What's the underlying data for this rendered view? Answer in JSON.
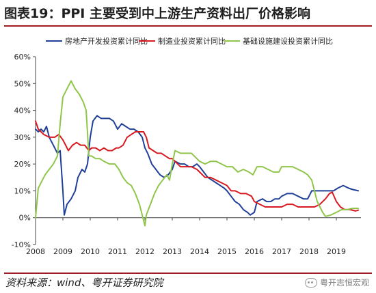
{
  "figure": {
    "title": "图表19：PPI 主要受到中上游生产资料出厂价格影响",
    "source": "资料来源：wind、粤开证券研究院",
    "watermark": "粤开志恒宏观",
    "watermark_icon": "wechat-icon"
  },
  "chart_data": {
    "type": "line",
    "title": "",
    "xlabel": "",
    "ylabel": "",
    "xlim": [
      2008.0,
      2019.9
    ],
    "ylim": [
      -10,
      60
    ],
    "yticks": [
      -10,
      0,
      10,
      20,
      30,
      40,
      50,
      60
    ],
    "ytick_labels": [
      "-10%",
      "0%",
      "10%",
      "20%",
      "30%",
      "40%",
      "50%",
      "60%"
    ],
    "xticks": [
      2008,
      2009,
      2010,
      2011,
      2012,
      2013,
      2014,
      2015,
      2016,
      2017,
      2018,
      2019
    ],
    "xtick_labels": [
      "2008",
      "2009",
      "2010",
      "2011",
      "2012",
      "2013",
      "2014",
      "2015",
      "2016",
      "2017",
      "2018",
      "2019"
    ],
    "grid": false,
    "legend_position": "top",
    "series": [
      {
        "name": "房地产开发投资累计同比",
        "color": "#1f3f99",
        "points": [
          [
            2008.0,
            33
          ],
          [
            2008.1,
            32
          ],
          [
            2008.2,
            33
          ],
          [
            2008.3,
            32
          ],
          [
            2008.4,
            34
          ],
          [
            2008.5,
            30
          ],
          [
            2008.65,
            27
          ],
          [
            2008.8,
            24
          ],
          [
            2008.9,
            25
          ],
          [
            2009.0,
            10
          ],
          [
            2009.05,
            1
          ],
          [
            2009.15,
            5
          ],
          [
            2009.3,
            7
          ],
          [
            2009.45,
            10
          ],
          [
            2009.55,
            15
          ],
          [
            2009.7,
            18
          ],
          [
            2009.8,
            17
          ],
          [
            2009.9,
            20
          ],
          [
            2010.0,
            30
          ],
          [
            2010.1,
            36
          ],
          [
            2010.25,
            38
          ],
          [
            2010.4,
            37
          ],
          [
            2010.55,
            37
          ],
          [
            2010.7,
            37
          ],
          [
            2010.85,
            36
          ],
          [
            2011.0,
            33
          ],
          [
            2011.15,
            35
          ],
          [
            2011.3,
            34
          ],
          [
            2011.45,
            33
          ],
          [
            2011.6,
            33
          ],
          [
            2011.75,
            32
          ],
          [
            2011.9,
            30
          ],
          [
            2012.0,
            26
          ],
          [
            2012.1,
            24
          ],
          [
            2012.25,
            20
          ],
          [
            2012.4,
            18
          ],
          [
            2012.55,
            16
          ],
          [
            2012.7,
            15
          ],
          [
            2012.85,
            16
          ],
          [
            2013.0,
            18
          ],
          [
            2013.1,
            21
          ],
          [
            2013.3,
            20
          ],
          [
            2013.45,
            20
          ],
          [
            2013.6,
            19
          ],
          [
            2013.75,
            19
          ],
          [
            2013.9,
            20
          ],
          [
            2014.0,
            19
          ],
          [
            2014.15,
            17
          ],
          [
            2014.3,
            15
          ],
          [
            2014.45,
            14
          ],
          [
            2014.6,
            13
          ],
          [
            2014.75,
            12
          ],
          [
            2014.9,
            11
          ],
          [
            2015.0,
            10
          ],
          [
            2015.15,
            8
          ],
          [
            2015.3,
            6
          ],
          [
            2015.45,
            5
          ],
          [
            2015.6,
            3
          ],
          [
            2015.75,
            2
          ],
          [
            2015.85,
            1
          ],
          [
            2016.0,
            2
          ],
          [
            2016.1,
            6
          ],
          [
            2016.3,
            7
          ],
          [
            2016.45,
            6
          ],
          [
            2016.6,
            6
          ],
          [
            2016.75,
            7
          ],
          [
            2016.9,
            7
          ],
          [
            2017.0,
            8
          ],
          [
            2017.2,
            9
          ],
          [
            2017.4,
            9
          ],
          [
            2017.6,
            8
          ],
          [
            2017.8,
            7
          ],
          [
            2017.95,
            7
          ],
          [
            2018.1,
            10
          ],
          [
            2018.3,
            10
          ],
          [
            2018.5,
            10
          ],
          [
            2018.7,
            10
          ],
          [
            2018.9,
            10
          ],
          [
            2019.05,
            11
          ],
          [
            2019.25,
            12
          ],
          [
            2019.45,
            11
          ],
          [
            2019.6,
            10.5
          ],
          [
            2019.8,
            10
          ]
        ]
      },
      {
        "name": "制造业投资累计同比",
        "color": "#d7191f",
        "points": [
          [
            2008.0,
            36
          ],
          [
            2008.1,
            33
          ],
          [
            2008.3,
            31
          ],
          [
            2008.5,
            30
          ],
          [
            2008.7,
            30
          ],
          [
            2008.85,
            31
          ],
          [
            2009.0,
            29
          ],
          [
            2009.1,
            27
          ],
          [
            2009.2,
            25
          ],
          [
            2009.35,
            27
          ],
          [
            2009.5,
            28
          ],
          [
            2009.65,
            27
          ],
          [
            2009.8,
            27
          ],
          [
            2009.95,
            25
          ],
          [
            2010.05,
            26
          ],
          [
            2010.2,
            26
          ],
          [
            2010.35,
            25
          ],
          [
            2010.5,
            26
          ],
          [
            2010.65,
            25
          ],
          [
            2010.8,
            25
          ],
          [
            2010.95,
            26
          ],
          [
            2011.05,
            26
          ],
          [
            2011.2,
            27
          ],
          [
            2011.35,
            30
          ],
          [
            2011.5,
            31
          ],
          [
            2011.65,
            32
          ],
          [
            2011.8,
            32
          ],
          [
            2011.95,
            32
          ],
          [
            2012.05,
            30
          ],
          [
            2012.15,
            26
          ],
          [
            2012.3,
            25
          ],
          [
            2012.45,
            24
          ],
          [
            2012.6,
            24
          ],
          [
            2012.75,
            23
          ],
          [
            2012.9,
            22
          ],
          [
            2013.0,
            22
          ],
          [
            2013.1,
            21
          ],
          [
            2013.3,
            19
          ],
          [
            2013.5,
            19
          ],
          [
            2013.7,
            19
          ],
          [
            2013.9,
            18
          ],
          [
            2014.0,
            17
          ],
          [
            2014.2,
            15
          ],
          [
            2014.4,
            15
          ],
          [
            2014.6,
            14
          ],
          [
            2014.8,
            13
          ],
          [
            2015.0,
            12
          ],
          [
            2015.15,
            10
          ],
          [
            2015.3,
            10
          ],
          [
            2015.5,
            9
          ],
          [
            2015.7,
            9
          ],
          [
            2015.9,
            8
          ],
          [
            2016.0,
            6
          ],
          [
            2016.2,
            5
          ],
          [
            2016.4,
            4
          ],
          [
            2016.6,
            4
          ],
          [
            2016.8,
            4
          ],
          [
            2017.0,
            4
          ],
          [
            2017.2,
            5
          ],
          [
            2017.4,
            5
          ],
          [
            2017.6,
            4
          ],
          [
            2017.8,
            4
          ],
          [
            2018.0,
            4
          ],
          [
            2018.2,
            4
          ],
          [
            2018.4,
            5
          ],
          [
            2018.6,
            7
          ],
          [
            2018.75,
            9
          ],
          [
            2018.85,
            9.5
          ],
          [
            2019.0,
            6
          ],
          [
            2019.15,
            4
          ],
          [
            2019.3,
            3
          ],
          [
            2019.5,
            3
          ],
          [
            2019.7,
            2.5
          ],
          [
            2019.8,
            2.8
          ]
        ]
      },
      {
        "name": "基础设施建设投资累计同比",
        "color": "#8fc64a",
        "points": [
          [
            2008.0,
            0
          ],
          [
            2008.1,
            11
          ],
          [
            2008.2,
            13
          ],
          [
            2008.35,
            16
          ],
          [
            2008.5,
            18
          ],
          [
            2008.65,
            20
          ],
          [
            2008.8,
            23
          ],
          [
            2008.9,
            35
          ],
          [
            2009.0,
            45
          ],
          [
            2009.1,
            47
          ],
          [
            2009.2,
            49
          ],
          [
            2009.3,
            51
          ],
          [
            2009.45,
            48
          ],
          [
            2009.6,
            46
          ],
          [
            2009.75,
            43
          ],
          [
            2009.85,
            40
          ],
          [
            2009.95,
            23
          ],
          [
            2010.05,
            23
          ],
          [
            2010.2,
            22
          ],
          [
            2010.35,
            22
          ],
          [
            2010.5,
            21
          ],
          [
            2010.7,
            20
          ],
          [
            2010.9,
            20
          ],
          [
            2011.05,
            18
          ],
          [
            2011.2,
            15
          ],
          [
            2011.35,
            13
          ],
          [
            2011.5,
            12
          ],
          [
            2011.65,
            9
          ],
          [
            2011.8,
            5
          ],
          [
            2011.9,
            1
          ],
          [
            2012.0,
            -3
          ],
          [
            2012.05,
            1
          ],
          [
            2012.2,
            5
          ],
          [
            2012.35,
            9
          ],
          [
            2012.5,
            12
          ],
          [
            2012.65,
            14
          ],
          [
            2012.8,
            16
          ],
          [
            2012.9,
            14
          ],
          [
            2013.0,
            20
          ],
          [
            2013.1,
            25
          ],
          [
            2013.3,
            24
          ],
          [
            2013.5,
            24
          ],
          [
            2013.7,
            24
          ],
          [
            2013.9,
            22
          ],
          [
            2014.0,
            21
          ],
          [
            2014.2,
            20
          ],
          [
            2014.4,
            21
          ],
          [
            2014.6,
            21
          ],
          [
            2014.8,
            20
          ],
          [
            2015.0,
            19
          ],
          [
            2015.2,
            19
          ],
          [
            2015.4,
            17
          ],
          [
            2015.6,
            18
          ],
          [
            2015.8,
            17
          ],
          [
            2015.95,
            16
          ],
          [
            2016.1,
            19
          ],
          [
            2016.3,
            19
          ],
          [
            2016.5,
            18
          ],
          [
            2016.7,
            17
          ],
          [
            2016.9,
            17
          ],
          [
            2017.0,
            19
          ],
          [
            2017.2,
            19
          ],
          [
            2017.4,
            19
          ],
          [
            2017.6,
            18
          ],
          [
            2017.8,
            17
          ],
          [
            2017.95,
            16
          ],
          [
            2018.1,
            14
          ],
          [
            2018.2,
            10
          ],
          [
            2018.3,
            6
          ],
          [
            2018.4,
            4
          ],
          [
            2018.5,
            2
          ],
          [
            2018.6,
            0.5
          ],
          [
            2018.8,
            1
          ],
          [
            2019.0,
            2
          ],
          [
            2019.2,
            3
          ],
          [
            2019.4,
            3
          ],
          [
            2019.6,
            3.5
          ],
          [
            2019.8,
            3.5
          ]
        ]
      }
    ]
  }
}
